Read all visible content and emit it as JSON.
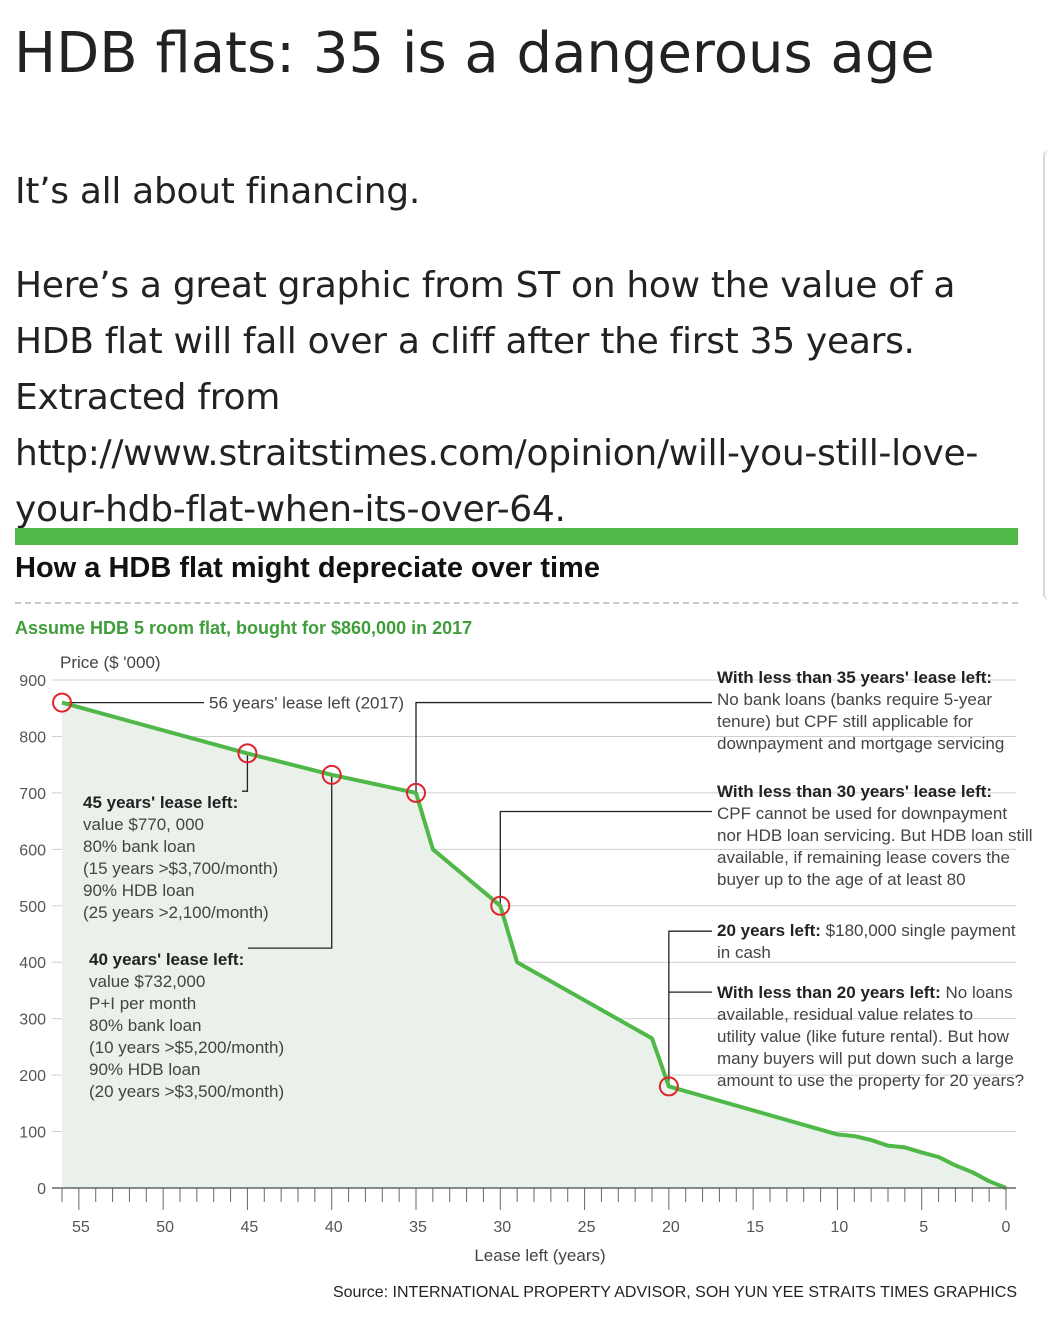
{
  "article": {
    "headline": "HDB flats: 35 is a dangerous age",
    "paragraph1": "It’s all about financing.",
    "paragraph2": "Here’s a great graphic from ST on how the value of a HDB flat will fall over a cliff after the first 35 years. Extracted from http://www.straitstimes.com/opinion/will-you-still-love-your-hdb-flat-when-its-over-64."
  },
  "graphic": {
    "title": "How a HDB flat might depreciate over time",
    "subtitle": "Assume HDB 5 room flat, bought for $860,000 in 2017",
    "source": "Source: INTERNATIONAL PROPERTY ADVISOR, SOH YUN YEE   STRAITS TIMES GRAPHICS",
    "accent_color": "#4fb848",
    "marker_color": "#e0242c"
  },
  "chart_data": {
    "type": "line",
    "title": "How a HDB flat might depreciate over time",
    "xlabel": "Lease left (years)",
    "ylabel": "Price ($ '000)",
    "xlim": [
      56,
      0
    ],
    "ylim": [
      0,
      900
    ],
    "x_reversed": true,
    "xticks": [
      55,
      50,
      45,
      40,
      35,
      30,
      25,
      20,
      15,
      10,
      5,
      0
    ],
    "yticks": [
      900,
      800,
      700,
      600,
      500,
      400,
      300,
      200,
      100,
      0
    ],
    "grid": "horizontal",
    "series": [
      {
        "points": [
          [
            56,
            860
          ],
          [
            45,
            770
          ],
          [
            40,
            732
          ],
          [
            35,
            700
          ],
          [
            34,
            600
          ],
          [
            30,
            500
          ],
          [
            29,
            400
          ],
          [
            21,
            265
          ],
          [
            20,
            180
          ],
          [
            10,
            95
          ],
          [
            9,
            92
          ],
          [
            8,
            85
          ],
          [
            7,
            75
          ],
          [
            6,
            72
          ],
          [
            5,
            63
          ],
          [
            4,
            55
          ],
          [
            3,
            40
          ],
          [
            2,
            28
          ],
          [
            1,
            12
          ],
          [
            0,
            0
          ]
        ]
      }
    ],
    "highlights": [
      {
        "x": 56,
        "y": 860
      },
      {
        "x": 45,
        "y": 770
      },
      {
        "x": 40,
        "y": 732
      },
      {
        "x": 35,
        "y": 700
      },
      {
        "x": 30,
        "y": 500
      },
      {
        "x": 20,
        "y": 180
      }
    ],
    "annotations": {
      "lease2017": "56 years' lease left (2017)",
      "a45_title": "45 years' lease left:",
      "a45_lines": [
        "value $770, 000",
        "80% bank loan",
        "(15 years >$3,700/month)",
        "90% HDB loan",
        "(25 years >2,100/month)"
      ],
      "a40_title": "40 years' lease left:",
      "a40_lines": [
        "value $732,000",
        "P+I per month",
        "80% bank loan",
        "(10 years >$5,200/month)",
        "90% HDB loan",
        "(20 years >$3,500/month)"
      ],
      "r35_title": "With less than 35 years' lease left:",
      "r35_lines": [
        "No bank loans (banks require 5-year",
        "tenure) but CPF still applicable for",
        "downpayment and mortgage servicing"
      ],
      "r30_title": "With less than 30 years' lease left:",
      "r30_lines": [
        "CPF cannot be used for downpayment",
        "nor HDB loan servicing. But HDB loan still",
        "available, if remaining lease covers the",
        "buyer up to the age of at least 80"
      ],
      "r20_title": "20 years left:",
      "r20_rest": " $180,000 single payment",
      "r20_line2": "in cash",
      "rlt20_title": "With less than 20 years left:",
      "rlt20_rest": " No loans",
      "rlt20_lines": [
        "available, residual value relates to",
        "utility value (like future rental). But how",
        "many buyers will put down such a large",
        "amount to use the property for 20 years?"
      ]
    }
  }
}
